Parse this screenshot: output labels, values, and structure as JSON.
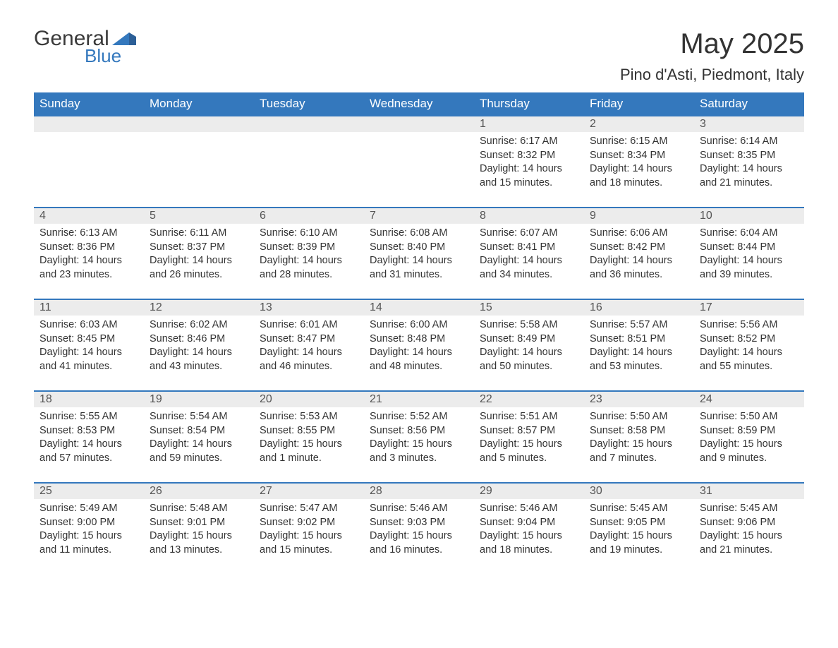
{
  "brand": {
    "word1": "General",
    "word2": "Blue",
    "color_dark": "#3a3a3a",
    "color_blue": "#3478bd"
  },
  "title": "May 2025",
  "location": "Pino d'Asti, Piedmont, Italy",
  "colors": {
    "header_bg": "#3478bd",
    "header_text": "#ffffff",
    "daynum_bg": "#ececec",
    "row_border": "#3478bd",
    "body_text": "#333333"
  },
  "day_headers": [
    "Sunday",
    "Monday",
    "Tuesday",
    "Wednesday",
    "Thursday",
    "Friday",
    "Saturday"
  ],
  "weeks": [
    [
      null,
      null,
      null,
      null,
      {
        "n": "1",
        "sunrise": "6:17 AM",
        "sunset": "8:32 PM",
        "daylight": "14 hours and 15 minutes."
      },
      {
        "n": "2",
        "sunrise": "6:15 AM",
        "sunset": "8:34 PM",
        "daylight": "14 hours and 18 minutes."
      },
      {
        "n": "3",
        "sunrise": "6:14 AM",
        "sunset": "8:35 PM",
        "daylight": "14 hours and 21 minutes."
      }
    ],
    [
      {
        "n": "4",
        "sunrise": "6:13 AM",
        "sunset": "8:36 PM",
        "daylight": "14 hours and 23 minutes."
      },
      {
        "n": "5",
        "sunrise": "6:11 AM",
        "sunset": "8:37 PM",
        "daylight": "14 hours and 26 minutes."
      },
      {
        "n": "6",
        "sunrise": "6:10 AM",
        "sunset": "8:39 PM",
        "daylight": "14 hours and 28 minutes."
      },
      {
        "n": "7",
        "sunrise": "6:08 AM",
        "sunset": "8:40 PM",
        "daylight": "14 hours and 31 minutes."
      },
      {
        "n": "8",
        "sunrise": "6:07 AM",
        "sunset": "8:41 PM",
        "daylight": "14 hours and 34 minutes."
      },
      {
        "n": "9",
        "sunrise": "6:06 AM",
        "sunset": "8:42 PM",
        "daylight": "14 hours and 36 minutes."
      },
      {
        "n": "10",
        "sunrise": "6:04 AM",
        "sunset": "8:44 PM",
        "daylight": "14 hours and 39 minutes."
      }
    ],
    [
      {
        "n": "11",
        "sunrise": "6:03 AM",
        "sunset": "8:45 PM",
        "daylight": "14 hours and 41 minutes."
      },
      {
        "n": "12",
        "sunrise": "6:02 AM",
        "sunset": "8:46 PM",
        "daylight": "14 hours and 43 minutes."
      },
      {
        "n": "13",
        "sunrise": "6:01 AM",
        "sunset": "8:47 PM",
        "daylight": "14 hours and 46 minutes."
      },
      {
        "n": "14",
        "sunrise": "6:00 AM",
        "sunset": "8:48 PM",
        "daylight": "14 hours and 48 minutes."
      },
      {
        "n": "15",
        "sunrise": "5:58 AM",
        "sunset": "8:49 PM",
        "daylight": "14 hours and 50 minutes."
      },
      {
        "n": "16",
        "sunrise": "5:57 AM",
        "sunset": "8:51 PM",
        "daylight": "14 hours and 53 minutes."
      },
      {
        "n": "17",
        "sunrise": "5:56 AM",
        "sunset": "8:52 PM",
        "daylight": "14 hours and 55 minutes."
      }
    ],
    [
      {
        "n": "18",
        "sunrise": "5:55 AM",
        "sunset": "8:53 PM",
        "daylight": "14 hours and 57 minutes."
      },
      {
        "n": "19",
        "sunrise": "5:54 AM",
        "sunset": "8:54 PM",
        "daylight": "14 hours and 59 minutes."
      },
      {
        "n": "20",
        "sunrise": "5:53 AM",
        "sunset": "8:55 PM",
        "daylight": "15 hours and 1 minute."
      },
      {
        "n": "21",
        "sunrise": "5:52 AM",
        "sunset": "8:56 PM",
        "daylight": "15 hours and 3 minutes."
      },
      {
        "n": "22",
        "sunrise": "5:51 AM",
        "sunset": "8:57 PM",
        "daylight": "15 hours and 5 minutes."
      },
      {
        "n": "23",
        "sunrise": "5:50 AM",
        "sunset": "8:58 PM",
        "daylight": "15 hours and 7 minutes."
      },
      {
        "n": "24",
        "sunrise": "5:50 AM",
        "sunset": "8:59 PM",
        "daylight": "15 hours and 9 minutes."
      }
    ],
    [
      {
        "n": "25",
        "sunrise": "5:49 AM",
        "sunset": "9:00 PM",
        "daylight": "15 hours and 11 minutes."
      },
      {
        "n": "26",
        "sunrise": "5:48 AM",
        "sunset": "9:01 PM",
        "daylight": "15 hours and 13 minutes."
      },
      {
        "n": "27",
        "sunrise": "5:47 AM",
        "sunset": "9:02 PM",
        "daylight": "15 hours and 15 minutes."
      },
      {
        "n": "28",
        "sunrise": "5:46 AM",
        "sunset": "9:03 PM",
        "daylight": "15 hours and 16 minutes."
      },
      {
        "n": "29",
        "sunrise": "5:46 AM",
        "sunset": "9:04 PM",
        "daylight": "15 hours and 18 minutes."
      },
      {
        "n": "30",
        "sunrise": "5:45 AM",
        "sunset": "9:05 PM",
        "daylight": "15 hours and 19 minutes."
      },
      {
        "n": "31",
        "sunrise": "5:45 AM",
        "sunset": "9:06 PM",
        "daylight": "15 hours and 21 minutes."
      }
    ]
  ],
  "labels": {
    "sunrise": "Sunrise: ",
    "sunset": "Sunset: ",
    "daylight": "Daylight: "
  }
}
